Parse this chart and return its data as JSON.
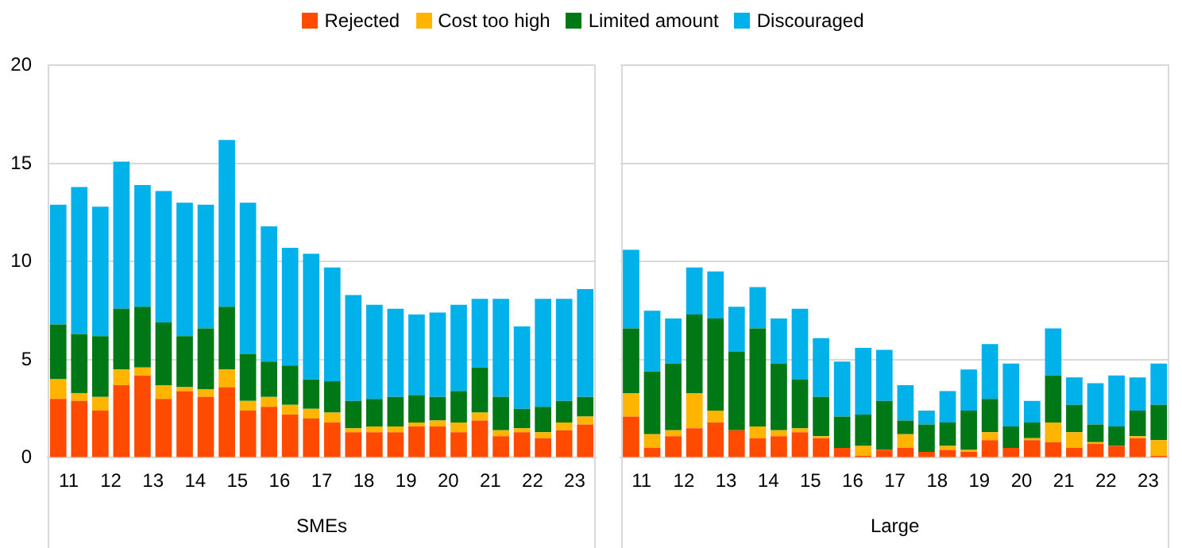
{
  "chart_data": [
    {
      "type": "bar",
      "stacked": true,
      "xlabel": "SMEs",
      "legend": "top",
      "grid": "y",
      "ylim": [
        0,
        20
      ],
      "yticks": [
        0,
        5,
        10,
        15,
        20
      ],
      "categories": [
        "11",
        null,
        "12",
        null,
        "13",
        null,
        "14",
        null,
        "15",
        null,
        "16",
        null,
        "17",
        null,
        "18",
        null,
        "19",
        null,
        "20",
        null,
        "21",
        null,
        "22",
        null,
        "23",
        null
      ],
      "series": [
        {
          "name": "Rejected",
          "color": "#ff4b00",
          "values": [
            3.0,
            2.9,
            2.4,
            3.7,
            4.2,
            3.0,
            3.4,
            3.1,
            3.6,
            2.4,
            2.6,
            2.2,
            2.0,
            1.8,
            1.3,
            1.3,
            1.3,
            1.6,
            1.6,
            1.3,
            1.9,
            1.1,
            1.3,
            1.0,
            1.4,
            1.7
          ]
        },
        {
          "name": "Cost too high",
          "color": "#ffb400",
          "values": [
            1.0,
            0.4,
            0.7,
            0.8,
            0.4,
            0.7,
            0.2,
            0.4,
            0.9,
            0.5,
            0.5,
            0.5,
            0.5,
            0.5,
            0.2,
            0.3,
            0.3,
            0.2,
            0.3,
            0.5,
            0.4,
            0.3,
            0.2,
            0.3,
            0.4,
            0.4
          ]
        },
        {
          "name": "Limited amount",
          "color": "#007816",
          "values": [
            2.8,
            3.0,
            3.1,
            3.1,
            3.1,
            3.2,
            2.6,
            3.1,
            3.2,
            2.4,
            1.8,
            2.0,
            1.5,
            1.6,
            1.4,
            1.4,
            1.5,
            1.4,
            1.2,
            1.6,
            2.3,
            1.7,
            1.0,
            1.3,
            1.1,
            1.0
          ]
        },
        {
          "name": "Discouraged",
          "color": "#00b1ea",
          "values": [
            6.1,
            7.5,
            6.6,
            7.5,
            6.2,
            6.7,
            6.8,
            6.3,
            8.5,
            7.7,
            6.9,
            6.0,
            6.4,
            5.8,
            5.4,
            4.8,
            4.5,
            4.1,
            4.3,
            4.4,
            3.5,
            5.0,
            4.2,
            5.5,
            5.2,
            5.5
          ]
        }
      ]
    },
    {
      "type": "bar",
      "stacked": true,
      "xlabel": "Large",
      "grid": "y",
      "ylim": [
        0,
        20
      ],
      "yticks": [
        0,
        5,
        10,
        15,
        20
      ],
      "tick_labels": "x",
      "categories": [
        "11",
        null,
        "12",
        null,
        "13",
        null,
        "14",
        null,
        "15",
        null,
        "16",
        null,
        "17",
        null,
        "18",
        null,
        "19",
        null,
        "20",
        null,
        "21",
        null,
        "22",
        null,
        "23",
        null
      ],
      "series": [
        {
          "color": "#ff4b00",
          "values": [
            2.1,
            0.5,
            1.1,
            1.5,
            1.8,
            1.4,
            1.0,
            1.1,
            1.3,
            1.0,
            0.5,
            0.1,
            0.4,
            0.5,
            0.3,
            0.4,
            0.3,
            0.9,
            0.5,
            0.9,
            0.8,
            0.5,
            0.7,
            0.6,
            1.0,
            0.1
          ]
        },
        {
          "color": "#ffb400",
          "values": [
            1.2,
            0.7,
            0.3,
            1.8,
            0.6,
            0,
            0.6,
            0.3,
            0.2,
            0.1,
            0,
            0.5,
            0,
            0.7,
            0,
            0.2,
            0.1,
            0.4,
            0,
            0.1,
            1.0,
            0.8,
            0.1,
            0,
            0.1,
            0.8
          ]
        },
        {
          "color": "#007816",
          "values": [
            3.3,
            3.2,
            3.4,
            4.0,
            4.7,
            4.0,
            5.0,
            3.4,
            2.5,
            2.0,
            1.6,
            1.6,
            2.5,
            0.7,
            1.4,
            1.2,
            2.0,
            1.7,
            1.1,
            0.8,
            2.4,
            1.4,
            0.9,
            1.0,
            1.3,
            1.8
          ]
        },
        {
          "color": "#00b1ea",
          "values": [
            4.0,
            3.1,
            2.3,
            2.4,
            2.4,
            2.3,
            2.1,
            2.3,
            3.6,
            3.0,
            2.8,
            3.4,
            2.6,
            1.8,
            0.7,
            1.6,
            2.1,
            2.8,
            3.2,
            1.1,
            2.4,
            1.4,
            2.1,
            2.6,
            1.7,
            2.1
          ]
        }
      ]
    }
  ]
}
